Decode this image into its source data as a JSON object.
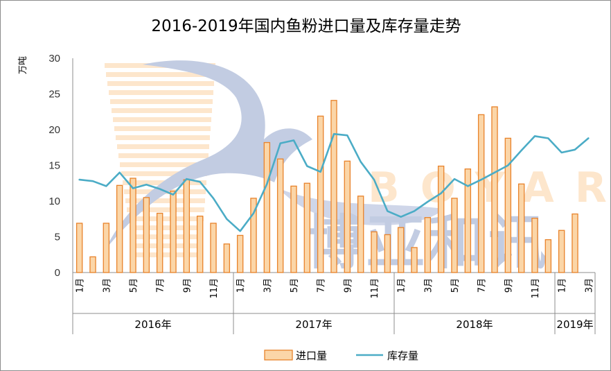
{
  "title": "2016-2019年国内鱼粉进口量及库存量走势",
  "colors": {
    "bar_fill": "#fbd6a8",
    "bar_stroke": "#e8822a",
    "line": "#4bacc6",
    "watermark_blue": "#b8c4de",
    "watermark_orange": "#fde2c4"
  },
  "watermark": {
    "brand": "BOYAR",
    "cn": "博亚和讯"
  },
  "chart_data": {
    "type": "bar",
    "title": "2016-2019年国内鱼粉进口量及库存量走势",
    "ylabel": "万吨",
    "ylim": [
      0,
      30
    ],
    "yticks": [
      "0",
      "5",
      "10",
      "15",
      "20",
      "25",
      "30"
    ],
    "grid": false,
    "legend_position": "bottom",
    "month_tick_labels": [
      "1月",
      "3月",
      "5月",
      "7月",
      "9月",
      "11月"
    ],
    "year_groups": [
      {
        "label": "2016年",
        "months": 12
      },
      {
        "label": "2017年",
        "months": 12
      },
      {
        "label": "2018年",
        "months": 12
      },
      {
        "label": "2019年",
        "months": 3
      }
    ],
    "series": [
      {
        "name": "进口量",
        "type": "bar",
        "values": [
          6.9,
          2.2,
          6.9,
          12.2,
          13.2,
          10.5,
          8.3,
          11.4,
          13.0,
          7.9,
          6.9,
          4.0,
          5.2,
          10.4,
          18.2,
          15.9,
          12.1,
          12.5,
          21.9,
          24.1,
          15.6,
          10.7,
          5.7,
          5.3,
          6.3,
          3.5,
          7.7,
          14.9,
          10.4,
          14.5,
          22.1,
          23.2,
          18.8,
          12.4,
          7.6,
          4.6,
          5.9,
          8.2
        ]
      },
      {
        "name": "库存量",
        "type": "line",
        "values": [
          13.0,
          12.8,
          12.1,
          14.0,
          11.8,
          12.3,
          11.7,
          10.9,
          13.1,
          12.7,
          10.4,
          7.5,
          5.8,
          8.3,
          12.4,
          18.1,
          18.5,
          14.9,
          14.1,
          19.4,
          19.2,
          15.5,
          13.0,
          8.6,
          7.8,
          8.6,
          9.9,
          11.1,
          13.1,
          12.1,
          13.0,
          14.0,
          15.0,
          17.1,
          19.1,
          18.8,
          16.8,
          17.2,
          18.8
        ]
      }
    ]
  }
}
